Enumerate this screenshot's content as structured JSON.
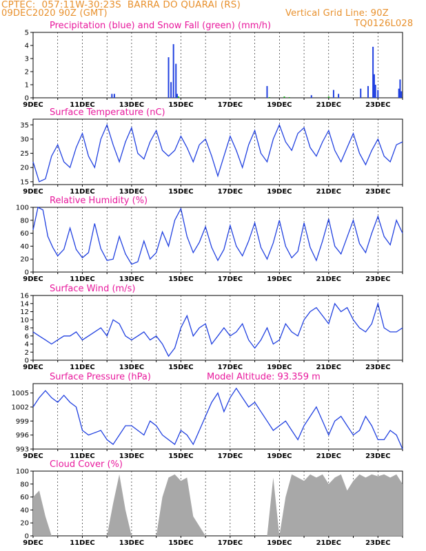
{
  "header": {
    "line1": "CPTEC:  057:11W-30:23S  BARRA DO QUARAI (RS)",
    "line2_left": "09DEC2020 90Z (GMT)",
    "line2_right": "Vertical Grid Line: 90Z",
    "line3_right": "TQ0126L028"
  },
  "colors": {
    "series": "#2040e0",
    "snow": "#10b010",
    "title": "#e8189c",
    "header": "#e8902c",
    "cloud": "#a8a8a8"
  },
  "x_ticks": [
    "9DEC",
    "11DEC",
    "13DEC",
    "15DEC",
    "17DEC",
    "19DEC",
    "21DEC",
    "23DEC"
  ],
  "x_range_days": [
    9,
    24
  ],
  "chart_data": [
    {
      "type": "bar",
      "title": "Precipitation (blue) and Snow Fall (green) (mm/h)",
      "ylim": [
        0,
        5
      ],
      "yticks": [
        0,
        1,
        2,
        3,
        4,
        5
      ],
      "series": [
        {
          "name": "Precipitation (blue)",
          "x": [
            12.2,
            12.3,
            14.5,
            14.6,
            14.7,
            14.8,
            14.85,
            18.5,
            20.3,
            21.2,
            21.4,
            22.3,
            22.6,
            22.8,
            22.85,
            22.9,
            23.0,
            23.85,
            23.9,
            23.95
          ],
          "values": [
            0.3,
            0.3,
            3.1,
            1.2,
            4.1,
            2.6,
            0.3,
            0.9,
            0.2,
            0.6,
            0.3,
            0.7,
            0.9,
            3.9,
            1.8,
            1.0,
            0.6,
            0.7,
            1.4,
            0.5
          ]
        },
        {
          "name": "Snow Fall (green)",
          "x": [
            14.9,
            18.6,
            19.2,
            19.4,
            21.0
          ],
          "values": [
            0.1,
            0.05,
            0.1,
            0.05,
            0.1
          ]
        }
      ]
    },
    {
      "type": "line",
      "title": "Surface Temperature (nC)",
      "ylim": [
        14,
        37
      ],
      "yticks": [
        15,
        20,
        25,
        30,
        35
      ],
      "x": [
        9,
        9.25,
        9.5,
        9.75,
        10,
        10.25,
        10.5,
        10.75,
        11,
        11.25,
        11.5,
        11.75,
        12,
        12.25,
        12.5,
        12.75,
        13,
        13.25,
        13.5,
        13.75,
        14,
        14.25,
        14.5,
        14.75,
        15,
        15.25,
        15.5,
        15.75,
        16,
        16.25,
        16.5,
        16.75,
        17,
        17.25,
        17.5,
        17.75,
        18,
        18.25,
        18.5,
        18.75,
        19,
        19.25,
        19.5,
        19.75,
        20,
        20.25,
        20.5,
        20.75,
        21,
        21.25,
        21.5,
        21.75,
        22,
        22.25,
        22.5,
        22.75,
        23,
        23.25,
        23.5,
        23.75,
        24
      ],
      "values": [
        22,
        15,
        16,
        24,
        28,
        22,
        20,
        27,
        32,
        24,
        20,
        30,
        35,
        28,
        22,
        29,
        34,
        25,
        23,
        29,
        33,
        26,
        24,
        26,
        31,
        27,
        22,
        28,
        30,
        24,
        17,
        24,
        31,
        26,
        20,
        28,
        33,
        25,
        22,
        30,
        35,
        29,
        26,
        32,
        34,
        27,
        24,
        29,
        33,
        26,
        22,
        27,
        32,
        25,
        21,
        26,
        30,
        24,
        22,
        28,
        29
      ]
    },
    {
      "type": "line",
      "title": "Relative Humidity (%)",
      "ylim": [
        0,
        100
      ],
      "yticks": [
        0,
        20,
        40,
        60,
        80,
        100
      ],
      "x": [
        9,
        9.2,
        9.4,
        9.6,
        9.8,
        10,
        10.25,
        10.5,
        10.75,
        11,
        11.25,
        11.5,
        11.75,
        12,
        12.25,
        12.5,
        12.75,
        13,
        13.25,
        13.5,
        13.75,
        14,
        14.25,
        14.5,
        14.75,
        15,
        15.25,
        15.5,
        15.75,
        16,
        16.25,
        16.5,
        16.75,
        17,
        17.25,
        17.5,
        17.75,
        18,
        18.25,
        18.5,
        18.75,
        19,
        19.25,
        19.5,
        19.75,
        20,
        20.25,
        20.5,
        20.75,
        21,
        21.25,
        21.5,
        21.75,
        22,
        22.25,
        22.5,
        22.75,
        23,
        23.25,
        23.5,
        23.75,
        24
      ],
      "values": [
        65,
        100,
        96,
        55,
        38,
        25,
        35,
        68,
        35,
        22,
        30,
        75,
        36,
        18,
        20,
        55,
        28,
        12,
        16,
        48,
        20,
        30,
        62,
        40,
        80,
        98,
        55,
        30,
        46,
        70,
        38,
        18,
        35,
        72,
        40,
        25,
        48,
        76,
        38,
        20,
        45,
        80,
        40,
        22,
        32,
        76,
        38,
        18,
        48,
        82,
        40,
        28,
        54,
        80,
        44,
        30,
        60,
        86,
        55,
        42,
        80,
        60
      ]
    },
    {
      "type": "line",
      "title": "Surface Wind (m/s)",
      "ylim": [
        0,
        16
      ],
      "yticks": [
        0,
        2,
        4,
        6,
        8,
        10,
        12,
        14,
        16
      ],
      "x": [
        9,
        9.25,
        9.5,
        9.75,
        10,
        10.25,
        10.5,
        10.75,
        11,
        11.25,
        11.5,
        11.75,
        12,
        12.25,
        12.5,
        12.75,
        13,
        13.25,
        13.5,
        13.75,
        14,
        14.25,
        14.5,
        14.75,
        15,
        15.25,
        15.5,
        15.75,
        16,
        16.25,
        16.5,
        16.75,
        17,
        17.25,
        17.5,
        17.75,
        18,
        18.25,
        18.5,
        18.75,
        19,
        19.25,
        19.5,
        19.75,
        20,
        20.25,
        20.5,
        20.75,
        21,
        21.25,
        21.5,
        21.75,
        22,
        22.25,
        22.5,
        22.75,
        23,
        23.25,
        23.5,
        23.75,
        24
      ],
      "values": [
        7,
        6,
        5,
        4,
        5,
        6,
        6,
        7,
        5,
        6,
        7,
        8,
        6,
        10,
        9,
        6,
        5,
        6,
        7,
        5,
        6,
        4,
        1,
        3,
        8,
        11,
        6,
        8,
        9,
        4,
        6,
        8,
        6,
        7,
        9,
        5,
        3,
        5,
        8,
        4,
        5,
        9,
        7,
        6,
        10,
        12,
        13,
        11,
        9,
        14,
        12,
        13,
        10,
        8,
        7,
        9,
        14,
        8,
        7,
        7,
        8
      ]
    },
    {
      "type": "line",
      "title": "Surface Pressure (hPa)",
      "annotation": "Model Altitude: 93.359  m",
      "ylim": [
        993,
        1007
      ],
      "yticks": [
        993,
        996,
        999,
        1002,
        1005
      ],
      "x": [
        9,
        9.25,
        9.5,
        9.75,
        10,
        10.25,
        10.5,
        10.75,
        11,
        11.25,
        11.5,
        11.75,
        12,
        12.25,
        12.5,
        12.75,
        13,
        13.25,
        13.5,
        13.75,
        14,
        14.25,
        14.5,
        14.75,
        15,
        15.25,
        15.5,
        15.75,
        16,
        16.25,
        16.5,
        16.75,
        17,
        17.25,
        17.5,
        17.75,
        18,
        18.25,
        18.5,
        18.75,
        19,
        19.25,
        19.5,
        19.75,
        20,
        20.25,
        20.5,
        20.75,
        21,
        21.25,
        21.5,
        21.75,
        22,
        22.25,
        22.5,
        22.75,
        23,
        23.25,
        23.5,
        23.75,
        24
      ],
      "values": [
        1002,
        1004,
        1005.5,
        1004,
        1003,
        1004.5,
        1003,
        1002,
        997,
        996,
        996.5,
        997,
        995,
        994,
        996,
        998,
        998,
        997,
        996,
        999,
        998,
        996,
        995,
        994,
        997,
        996,
        994,
        997,
        1000,
        1003,
        1005,
        1001,
        1004,
        1006,
        1004,
        1002,
        1003,
        1001,
        999,
        997,
        998,
        999,
        997,
        995,
        998,
        1000,
        1002,
        999,
        996,
        999,
        1000,
        998,
        996,
        997,
        1000,
        998,
        995,
        995,
        997,
        996,
        993
      ]
    },
    {
      "type": "area",
      "title": "Cloud Cover (%)",
      "ylim": [
        0,
        100
      ],
      "yticks": [
        0,
        20,
        40,
        60,
        80,
        100
      ],
      "x": [
        9,
        9.25,
        9.5,
        9.75,
        10,
        10.5,
        11,
        11.5,
        12,
        12.25,
        12.5,
        12.75,
        13,
        13.5,
        14,
        14.25,
        14.5,
        14.75,
        15,
        15.25,
        15.5,
        16,
        16.5,
        17,
        17.5,
        18,
        18.5,
        18.75,
        19,
        19.25,
        19.5,
        19.75,
        20,
        20.25,
        20.5,
        20.75,
        21,
        21.25,
        21.5,
        21.75,
        22,
        22.25,
        22.5,
        22.75,
        23,
        23.25,
        23.5,
        23.75,
        24
      ],
      "values": [
        60,
        70,
        30,
        0,
        0,
        0,
        0,
        0,
        0,
        50,
        95,
        40,
        0,
        0,
        0,
        60,
        90,
        95,
        85,
        90,
        30,
        0,
        0,
        0,
        0,
        0,
        0,
        90,
        0,
        60,
        95,
        90,
        85,
        95,
        90,
        95,
        80,
        90,
        95,
        70,
        85,
        95,
        90,
        95,
        92,
        95,
        90,
        95,
        80
      ]
    }
  ]
}
